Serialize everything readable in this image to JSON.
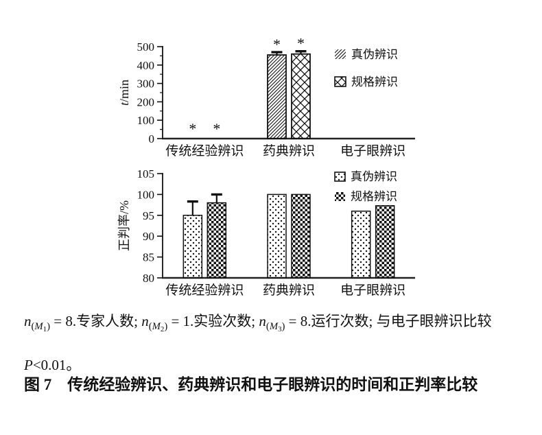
{
  "figure": {
    "caption": "图 7　传统经验辨识、药典辨识和电子眼辨识的时间和正判率比较",
    "note_segments": [
      {
        "text": "n",
        "style": "var"
      },
      {
        "text": "(",
        "style": "sub"
      },
      {
        "text": "M",
        "style": "subvar"
      },
      {
        "text": "1",
        "style": "subsub"
      },
      {
        "text": ")",
        "style": "sub"
      },
      {
        "text": " = 8.专家人数; ",
        "style": "normal"
      },
      {
        "text": "n",
        "style": "var"
      },
      {
        "text": "(",
        "style": "sub"
      },
      {
        "text": "M",
        "style": "subvar"
      },
      {
        "text": "2",
        "style": "subsub"
      },
      {
        "text": ")",
        "style": "sub"
      },
      {
        "text": " = 1.实验次数; ",
        "style": "normal"
      },
      {
        "text": "n",
        "style": "var"
      },
      {
        "text": "(",
        "style": "sub"
      },
      {
        "text": "M",
        "style": "subvar"
      },
      {
        "text": "3",
        "style": "subsub"
      },
      {
        "text": ")",
        "style": "sub"
      },
      {
        "text": " = 8.运行次数; 与电子眼辨识比较 ",
        "style": "normal"
      },
      {
        "text": "P",
        "style": "var"
      },
      {
        "text": "<0.01。",
        "style": "normal"
      }
    ]
  },
  "chart_data": [
    {
      "type": "bar",
      "title": "",
      "xlabel": "",
      "ylabel": "t/min",
      "ylabel_parts": [
        {
          "text": "t",
          "style": "italic"
        },
        {
          "text": "/min",
          "style": "normal"
        }
      ],
      "ylim": [
        0,
        500
      ],
      "yticks": [
        0,
        100,
        200,
        300,
        400,
        500
      ],
      "minor_tick_step": 50,
      "grid": false,
      "legend_position": "right-top",
      "categories": [
        "传统经验辨识",
        "药典辨识",
        "电子眼辨识"
      ],
      "series": [
        {
          "name": "真伪辨识",
          "pattern": "diag",
          "values": [
            0,
            455,
            0
          ],
          "errors": [
            null,
            15,
            null
          ],
          "stars": [
            true,
            true,
            false
          ]
        },
        {
          "name": "规格辨识",
          "pattern": "cross",
          "values": [
            0,
            460,
            0
          ],
          "errors": [
            null,
            15,
            null
          ],
          "stars": [
            true,
            true,
            false
          ]
        }
      ],
      "legend": [
        {
          "label": "真伪辨识",
          "pattern": "diag",
          "border": false
        },
        {
          "label": "规格辨识",
          "pattern": "cross",
          "border": true
        }
      ],
      "bar_color": "#111111"
    },
    {
      "type": "bar",
      "title": "",
      "xlabel": "",
      "ylabel": "正判率/%",
      "ylabel_parts": [
        {
          "text": "正判率/%",
          "style": "normal"
        }
      ],
      "ylim": [
        80,
        105
      ],
      "yticks": [
        80,
        85,
        90,
        95,
        100,
        105
      ],
      "minor_tick_step": null,
      "grid": false,
      "legend_position": "right-top",
      "categories": [
        "传统经验辨识",
        "药典辨识",
        "电子眼辨识"
      ],
      "series": [
        {
          "name": "真伪辨识",
          "pattern": "dots",
          "values": [
            95,
            100,
            96
          ],
          "errors": [
            3.3,
            null,
            null
          ],
          "stars": [
            false,
            false,
            false
          ]
        },
        {
          "name": "规格辨识",
          "pattern": "checker",
          "values": [
            98,
            100,
            97.3
          ],
          "errors": [
            2,
            null,
            null
          ],
          "stars": [
            false,
            false,
            false
          ]
        }
      ],
      "legend": [
        {
          "label": "真伪辨识",
          "pattern": "dots",
          "border": true
        },
        {
          "label": "规格辨识",
          "pattern": "checker",
          "border": false
        }
      ],
      "bar_color": "#111111"
    }
  ]
}
